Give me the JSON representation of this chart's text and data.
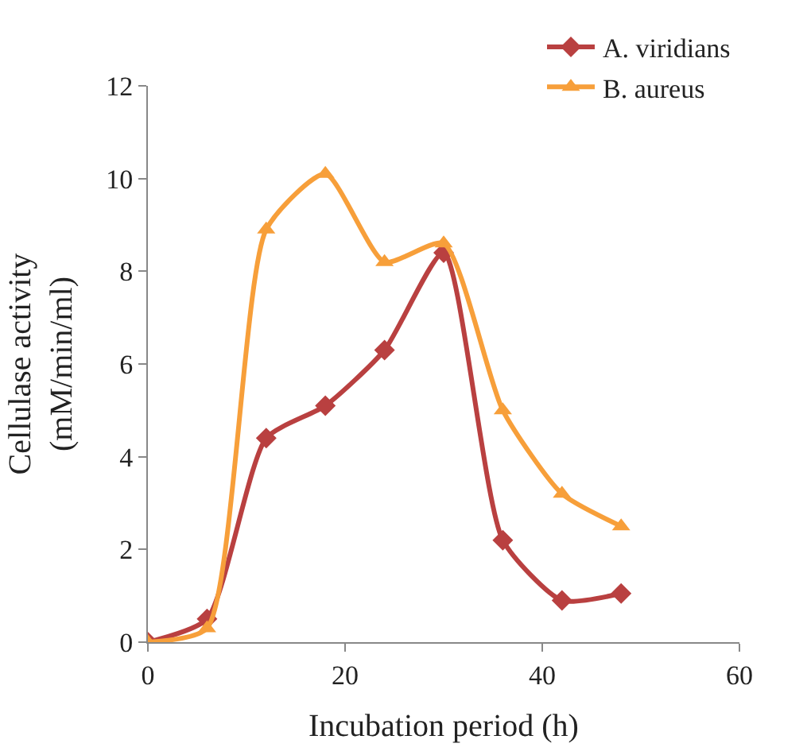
{
  "chart_data": {
    "type": "line",
    "xlabel": "Incubation period (h)",
    "ylabel": "Cellulase activity\n(mM/min/ml)",
    "x": [
      0,
      6,
      12,
      18,
      24,
      30,
      36,
      42,
      48
    ],
    "xlim": [
      0,
      60
    ],
    "xticks": [
      0,
      20,
      40,
      60
    ],
    "ylim": [
      0,
      12
    ],
    "yticks": [
      0,
      2,
      4,
      6,
      8,
      10,
      12
    ],
    "legend": "top right",
    "line_style": "solid",
    "series": [
      {
        "name": "A. viridians",
        "color": "#b94040",
        "marker": "diamond",
        "values": [
          0,
          0.5,
          4.4,
          5.1,
          6.3,
          8.4,
          2.2,
          0.9,
          1.05
        ]
      },
      {
        "name": "B. aureus",
        "color": "#f79f3a",
        "marker": "triangle",
        "values": [
          0,
          0.3,
          8.9,
          10.1,
          8.2,
          8.6,
          5.0,
          3.2,
          2.5
        ]
      }
    ]
  }
}
